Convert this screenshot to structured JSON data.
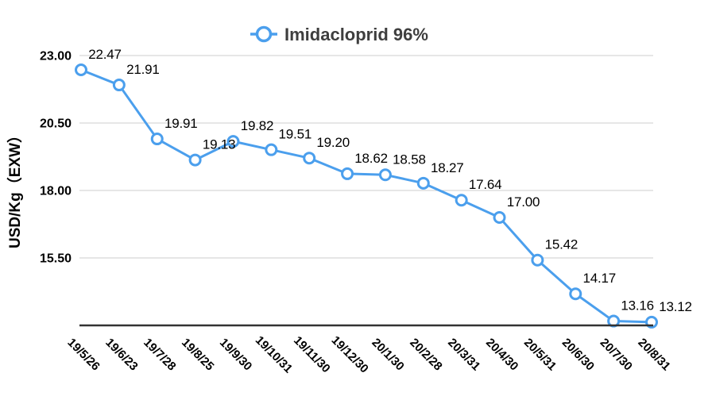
{
  "chart_data": {
    "type": "line",
    "title": "Imidacloprid 96%",
    "ylabel": "USD/Kg（EXW）",
    "xlabel": "",
    "categories": [
      "19/5/26",
      "19/6/23",
      "19/7/28",
      "19/8/25",
      "19/9/30",
      "19/10/31",
      "19/11/30",
      "19/12/30",
      "20/1/30",
      "20/2/28",
      "20/3/31",
      "20/4/30",
      "20/5/31",
      "20/6/30",
      "20/7/30",
      "20/8/31"
    ],
    "values": [
      22.47,
      21.91,
      19.91,
      19.13,
      19.82,
      19.51,
      19.2,
      18.62,
      18.58,
      18.27,
      17.64,
      17.0,
      15.42,
      14.17,
      13.16,
      13.12
    ],
    "value_labels": [
      "22.47",
      "21.91",
      "19.91",
      "19.13",
      "19.82",
      "19.51",
      "19.20",
      "18.62",
      "18.58",
      "18.27",
      "17.64",
      "17.00",
      "15.42",
      "14.17",
      "13.16",
      "13.12"
    ],
    "ylim": [
      13.0,
      23.0
    ],
    "yticks": [
      23.0,
      20.5,
      18.0,
      15.5
    ],
    "ytick_labels": [
      "23.00",
      "20.50",
      "18.00",
      "15.50"
    ],
    "grid": true,
    "legend_position": "top-center",
    "colors": {
      "line": "#4B9FED",
      "marker_fill": "#FFFFFF",
      "grid": "#CCCCCC",
      "baseline": "#333333",
      "title_text": "#3E3E3E",
      "label_text": "#000000"
    }
  }
}
